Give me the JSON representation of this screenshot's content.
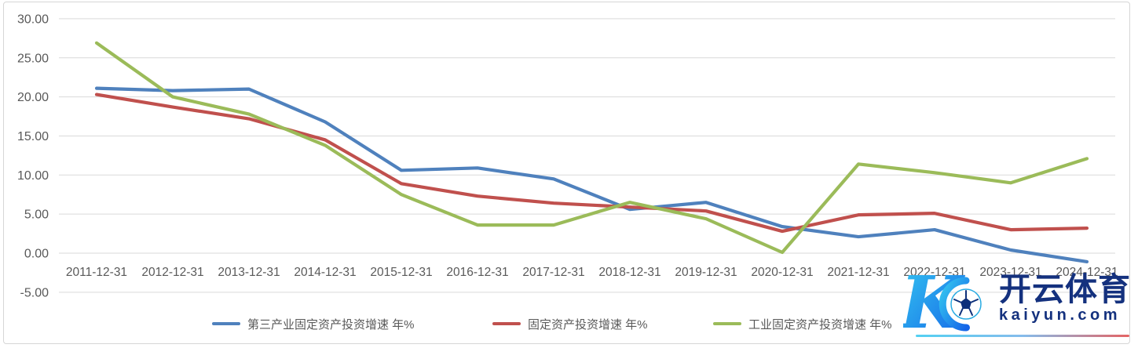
{
  "chart_data": {
    "type": "line",
    "title": "",
    "xlabel": "",
    "ylabel": "",
    "grid": true,
    "legend_position": "bottom",
    "ylim": [
      -5,
      30
    ],
    "yticks": [
      30,
      25,
      20,
      15,
      10,
      5,
      0,
      -5
    ],
    "ytick_labels": [
      "30.00",
      "25.00",
      "20.00",
      "15.00",
      "10.00",
      "5.00",
      "0.00",
      "-5.00"
    ],
    "x": [
      "2011-12-31",
      "2012-12-31",
      "2013-12-31",
      "2014-12-31",
      "2015-12-31",
      "2016-12-31",
      "2017-12-31",
      "2018-12-31",
      "2019-12-31",
      "2020-12-31",
      "2021-12-31",
      "2022-12-31",
      "2023-12-31",
      "2024-12-31"
    ],
    "series": [
      {
        "name": "第三产业固定资产投资增速 年%",
        "color": "#4F81BD",
        "values": [
          21.1,
          20.8,
          21.0,
          16.8,
          10.6,
          10.9,
          9.5,
          5.6,
          6.5,
          3.4,
          2.1,
          3.0,
          0.4,
          -1.1
        ]
      },
      {
        "name": "固定资产投资增速 年%",
        "color": "#C0504D",
        "values": [
          20.3,
          18.7,
          17.2,
          14.5,
          8.9,
          7.3,
          6.4,
          5.9,
          5.4,
          2.8,
          4.9,
          5.1,
          3.0,
          3.2
        ]
      },
      {
        "name": "工业固定资产投资增速 年%",
        "color": "#9BBB59",
        "values": [
          26.9,
          20.0,
          17.8,
          13.8,
          7.5,
          3.6,
          3.6,
          6.5,
          4.4,
          0.1,
          11.4,
          10.3,
          9.0,
          12.1
        ]
      }
    ],
    "gridline_color": "#D9D9D9",
    "axis_label_color": "#595959"
  },
  "watermark": {
    "brand": "开云体育",
    "domain": "kaiyun.com",
    "logo_icon": "kaiyun-k-soccer-logo",
    "brand_color": "#14317E",
    "logo_gradient": [
      "#35C8F0",
      "#1464E8"
    ],
    "underline_gradient": [
      "#35C8F0",
      "#E04848"
    ]
  }
}
